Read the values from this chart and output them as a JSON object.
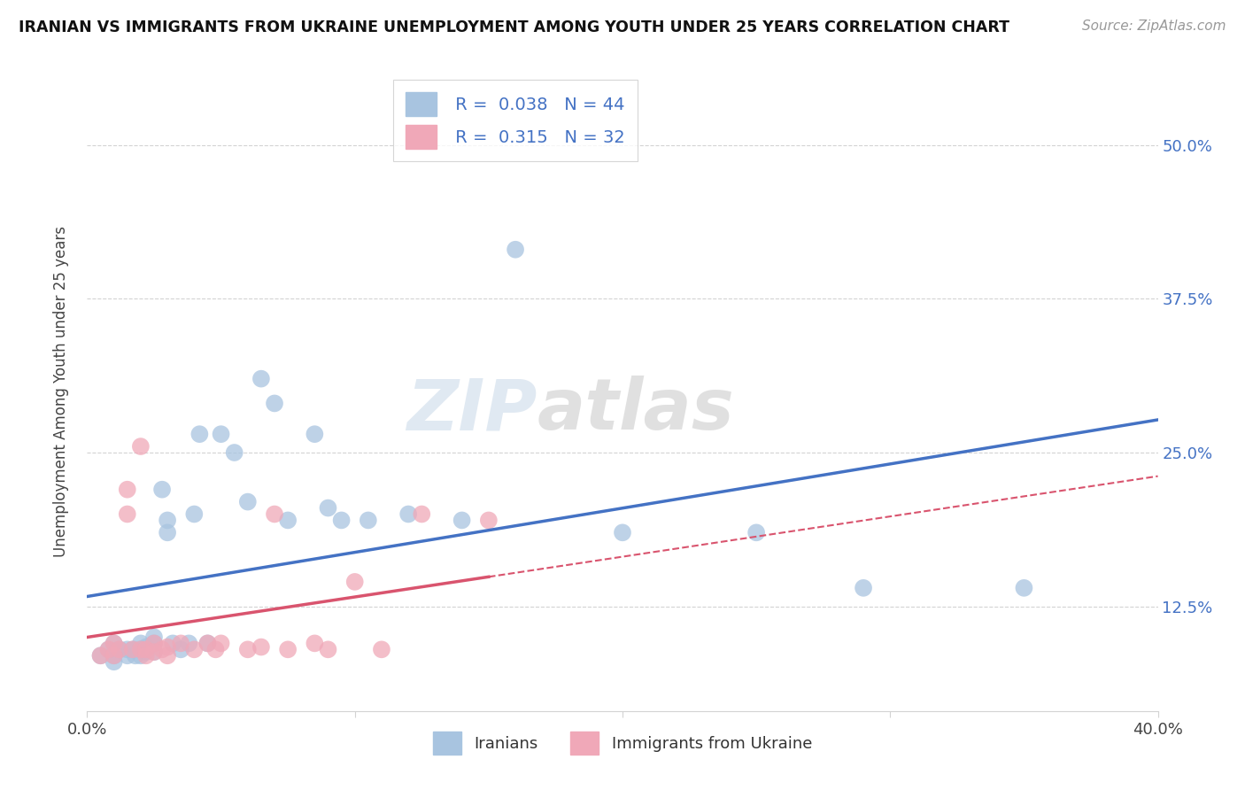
{
  "title": "IRANIAN VS IMMIGRANTS FROM UKRAINE UNEMPLOYMENT AMONG YOUTH UNDER 25 YEARS CORRELATION CHART",
  "source": "Source: ZipAtlas.com",
  "ylabel": "Unemployment Among Youth under 25 years",
  "xlim": [
    0.0,
    0.4
  ],
  "ylim": [
    0.04,
    0.56
  ],
  "xticks": [
    0.0,
    0.1,
    0.2,
    0.3,
    0.4
  ],
  "xtick_labels": [
    "0.0%",
    "",
    "",
    "",
    "40.0%"
  ],
  "ytick_labels": [
    "12.5%",
    "25.0%",
    "37.5%",
    "50.0%"
  ],
  "yticks": [
    0.125,
    0.25,
    0.375,
    0.5
  ],
  "watermark_zip": "ZIP",
  "watermark_atlas": "atlas",
  "series1_label": "Iranians",
  "series2_label": "Immigrants from Ukraine",
  "R1": 0.038,
  "N1": 44,
  "R2": 0.315,
  "N2": 32,
  "color1": "#a8c4e0",
  "color2": "#f0a8b8",
  "trend1_color": "#4472c4",
  "trend2_color": "#d9546e",
  "iranians_x": [
    0.005,
    0.008,
    0.01,
    0.01,
    0.01,
    0.012,
    0.015,
    0.015,
    0.017,
    0.018,
    0.02,
    0.02,
    0.02,
    0.022,
    0.022,
    0.025,
    0.025,
    0.025,
    0.028,
    0.03,
    0.03,
    0.032,
    0.035,
    0.038,
    0.04,
    0.042,
    0.045,
    0.05,
    0.055,
    0.06,
    0.065,
    0.07,
    0.075,
    0.085,
    0.09,
    0.095,
    0.105,
    0.12,
    0.14,
    0.16,
    0.2,
    0.25,
    0.29,
    0.35
  ],
  "iranians_y": [
    0.085,
    0.09,
    0.095,
    0.085,
    0.08,
    0.09,
    0.09,
    0.085,
    0.09,
    0.085,
    0.095,
    0.09,
    0.085,
    0.092,
    0.088,
    0.1,
    0.095,
    0.088,
    0.22,
    0.195,
    0.185,
    0.095,
    0.09,
    0.095,
    0.2,
    0.265,
    0.095,
    0.265,
    0.25,
    0.21,
    0.31,
    0.29,
    0.195,
    0.265,
    0.205,
    0.195,
    0.195,
    0.2,
    0.195,
    0.415,
    0.185,
    0.185,
    0.14,
    0.14
  ],
  "ukraine_x": [
    0.005,
    0.008,
    0.01,
    0.01,
    0.012,
    0.015,
    0.015,
    0.017,
    0.02,
    0.02,
    0.022,
    0.022,
    0.025,
    0.025,
    0.028,
    0.03,
    0.03,
    0.035,
    0.04,
    0.045,
    0.048,
    0.05,
    0.06,
    0.065,
    0.07,
    0.075,
    0.085,
    0.09,
    0.1,
    0.11,
    0.125,
    0.15
  ],
  "ukraine_y": [
    0.085,
    0.09,
    0.095,
    0.085,
    0.09,
    0.22,
    0.2,
    0.09,
    0.255,
    0.09,
    0.09,
    0.085,
    0.095,
    0.088,
    0.09,
    0.092,
    0.085,
    0.095,
    0.09,
    0.095,
    0.09,
    0.095,
    0.09,
    0.092,
    0.2,
    0.09,
    0.095,
    0.09,
    0.145,
    0.09,
    0.2,
    0.195
  ]
}
